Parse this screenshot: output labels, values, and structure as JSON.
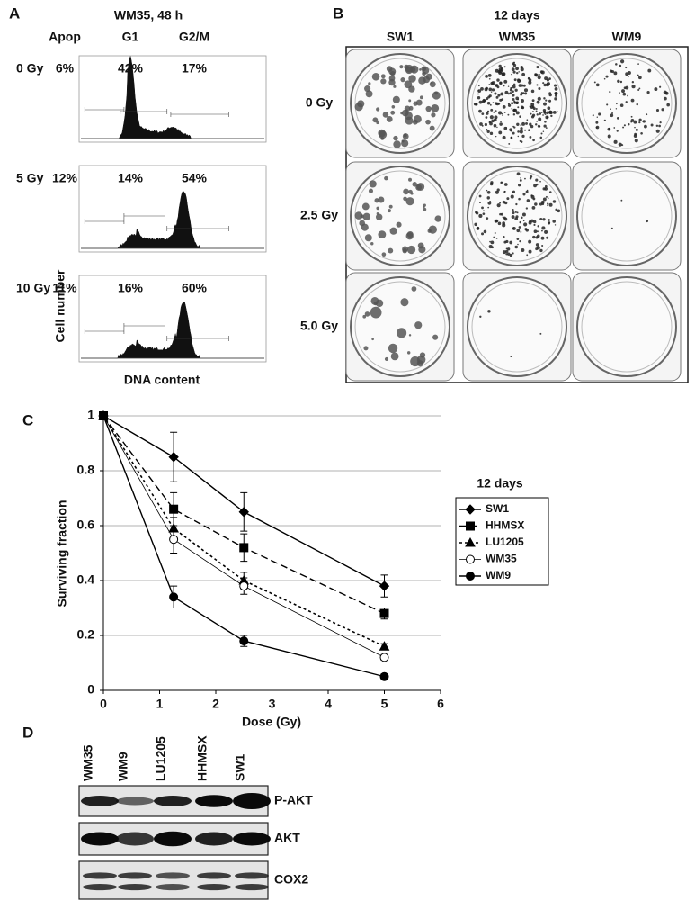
{
  "panel_a": {
    "label": "A",
    "title": "WM35, 48 h",
    "phases": [
      "Apop",
      "G1",
      "G2/M"
    ],
    "rows": [
      {
        "dose": "0 Gy",
        "values": [
          "6%",
          "42%",
          "17%"
        ]
      },
      {
        "dose": "5 Gy",
        "values": [
          "12%",
          "14%",
          "54%"
        ]
      },
      {
        "dose": "10 Gy",
        "values": [
          "11%",
          "16%",
          "60%"
        ]
      }
    ],
    "y_label": "Cell number",
    "x_label": "DNA content"
  },
  "panel_b": {
    "label": "B",
    "title": "12 days",
    "columns": [
      "SW1",
      "WM35",
      "WM9"
    ],
    "rows": [
      "0 Gy",
      "2.5 Gy",
      "5.0 Gy"
    ]
  },
  "chart_data": {
    "type": "line",
    "label": "C",
    "x_label": "Dose (Gy)",
    "y_label": "Surviving fraction",
    "legend_title": "12 days",
    "x": [
      0,
      1.25,
      2.5,
      5
    ],
    "series": [
      {
        "name": "SW1",
        "color": "#000000",
        "marker": "diamond",
        "line_style": "solid",
        "values": [
          1,
          0.85,
          0.65,
          0.38
        ],
        "errors": [
          null,
          0.09,
          0.07,
          0.04
        ]
      },
      {
        "name": "HHMSX",
        "color": "#000000",
        "marker": "square",
        "line_style": "dashed",
        "values": [
          1,
          0.66,
          0.52,
          0.28
        ],
        "errors": [
          null,
          0.06,
          0.05,
          0.02
        ]
      },
      {
        "name": "LU1205",
        "color": "#000000",
        "marker": "triangle",
        "line_style": "dotted",
        "values": [
          1,
          0.59,
          0.4,
          0.16
        ],
        "errors": [
          null,
          0.04,
          0.03,
          0.01
        ]
      },
      {
        "name": "WM35",
        "color": "#000000",
        "marker": "open-circle",
        "line_style": "thin",
        "values": [
          1,
          0.55,
          0.38,
          0.12
        ],
        "errors": [
          null,
          0.05,
          0.03,
          0.01
        ]
      },
      {
        "name": "WM9",
        "color": "#000000",
        "marker": "circle",
        "line_style": "solid",
        "values": [
          1,
          0.34,
          0.18,
          0.05
        ],
        "errors": [
          null,
          0.04,
          0.02,
          0.01
        ]
      }
    ],
    "xlim": [
      0,
      6
    ],
    "xticks": [
      0,
      1,
      2,
      3,
      4,
      5,
      6
    ],
    "ylim": [
      0,
      1
    ],
    "yticks": [
      0,
      0.2,
      0.4,
      0.6,
      0.8,
      1
    ],
    "grid": true
  },
  "panel_d": {
    "label": "D",
    "lanes": [
      "WM35",
      "WM9",
      "LU1205",
      "HHMSX",
      "SW1"
    ],
    "blots": [
      "P-AKT",
      "AKT",
      "COX2"
    ]
  }
}
